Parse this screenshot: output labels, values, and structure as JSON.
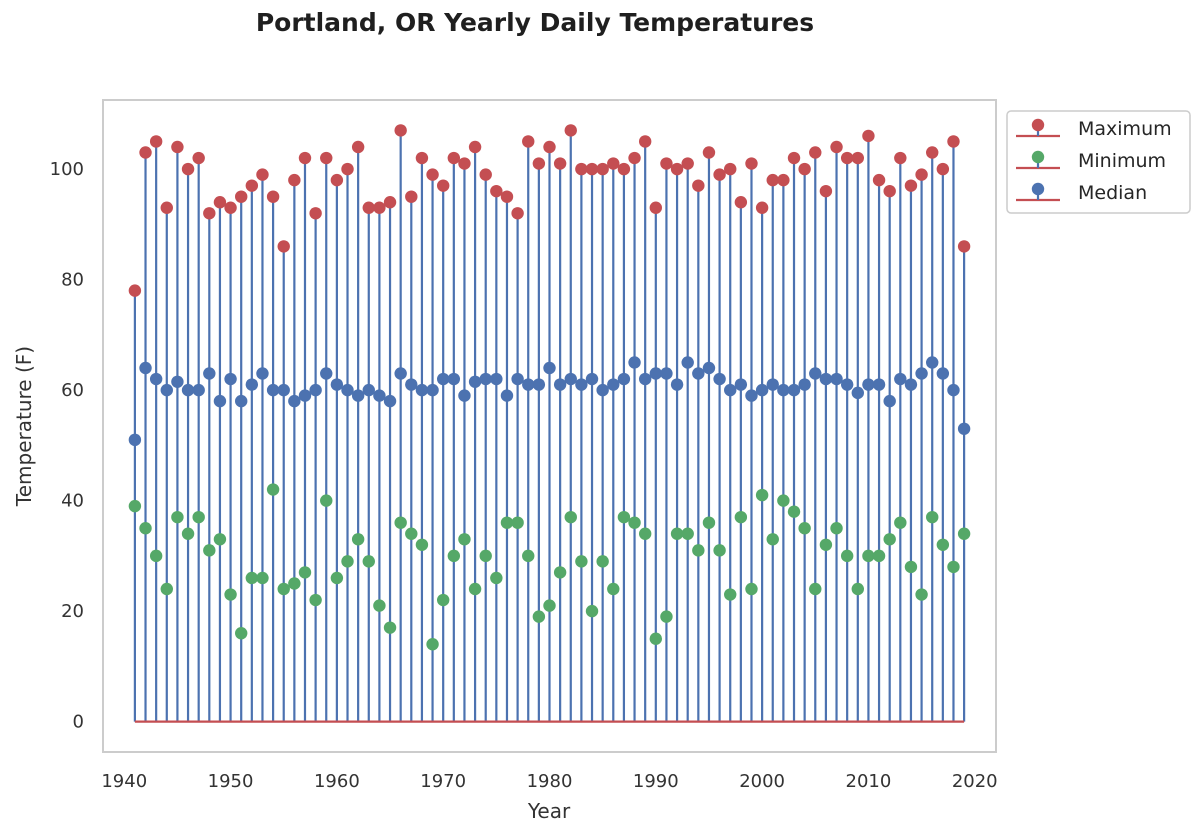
{
  "chart_data": {
    "type": "stem",
    "title": "Portland, OR Yearly Daily Temperatures",
    "xlabel": "Year",
    "ylabel": "Temperature (F)",
    "xlim": [
      1938,
      2022
    ],
    "ylim": [
      -5.5,
      112.5
    ],
    "xticks": [
      1940,
      1950,
      1960,
      1970,
      1980,
      1990,
      2000,
      2010,
      2020
    ],
    "yticks": [
      0,
      20,
      40,
      60,
      80,
      100
    ],
    "grid": false,
    "legend_position": "outside-top-right",
    "x": [
      1941,
      1942,
      1943,
      1944,
      1945,
      1946,
      1947,
      1948,
      1949,
      1950,
      1951,
      1952,
      1953,
      1954,
      1955,
      1956,
      1957,
      1958,
      1959,
      1960,
      1961,
      1962,
      1963,
      1964,
      1965,
      1966,
      1967,
      1968,
      1969,
      1970,
      1971,
      1972,
      1973,
      1974,
      1975,
      1976,
      1977,
      1978,
      1979,
      1980,
      1981,
      1982,
      1983,
      1984,
      1985,
      1986,
      1987,
      1988,
      1989,
      1990,
      1991,
      1992,
      1993,
      1994,
      1995,
      1996,
      1997,
      1998,
      1999,
      2000,
      2001,
      2002,
      2003,
      2004,
      2005,
      2006,
      2007,
      2008,
      2009,
      2010,
      2011,
      2012,
      2013,
      2014,
      2015,
      2016,
      2017,
      2018,
      2019
    ],
    "series": [
      {
        "name": "Maximum",
        "color": "#c44e52",
        "values": [
          78,
          103,
          105,
          93,
          104,
          100,
          102,
          92,
          94,
          93,
          95,
          97,
          99,
          95,
          86,
          98,
          102,
          92,
          102,
          98,
          100,
          104,
          93,
          93,
          94,
          107,
          95,
          102,
          99,
          97,
          102,
          101,
          104,
          99,
          96,
          95,
          92,
          105,
          101,
          104,
          101,
          107,
          100,
          100,
          100,
          101,
          100,
          102,
          105,
          93,
          101,
          100,
          101,
          97,
          103,
          99,
          100,
          94,
          101,
          93,
          98,
          98,
          102,
          100,
          103,
          96,
          104,
          102,
          102,
          106,
          98,
          96,
          102,
          97,
          99,
          103,
          100,
          105,
          86
        ]
      },
      {
        "name": "Minimum",
        "color": "#55a868",
        "values": [
          39,
          35,
          30,
          24,
          37,
          34,
          37,
          31,
          33,
          23,
          16,
          26,
          26,
          42,
          24,
          25,
          27,
          22,
          40,
          26,
          29,
          33,
          29,
          21,
          17,
          36,
          34,
          32,
          14,
          22,
          30,
          33,
          24,
          30,
          26,
          36,
          36,
          30,
          19,
          21,
          27,
          37,
          29,
          20,
          29,
          24,
          37,
          36,
          34,
          15,
          19,
          34,
          34,
          31,
          36,
          31,
          23,
          37,
          24,
          41,
          33,
          40,
          38,
          35,
          24,
          32,
          35,
          30,
          24,
          30,
          30,
          33,
          36,
          28,
          23,
          37,
          32,
          28,
          34
        ]
      },
      {
        "name": "Median",
        "color": "#4c72b0",
        "values": [
          51,
          64,
          62,
          60,
          61.5,
          60,
          60,
          63,
          58,
          62,
          58,
          61,
          63,
          60,
          60,
          58,
          59,
          60,
          63,
          61,
          60,
          59,
          60,
          59,
          58,
          63,
          61,
          60,
          60,
          62,
          62,
          59,
          61.5,
          62,
          62,
          59,
          62,
          61,
          61,
          64,
          61,
          62,
          61,
          62,
          60,
          61,
          62,
          65,
          62,
          63,
          63,
          61,
          65,
          63,
          64,
          62,
          60,
          61,
          59,
          60,
          61,
          60,
          60,
          61,
          63,
          62,
          62,
          61,
          59.5,
          61,
          61,
          58,
          62,
          61,
          63,
          65,
          63,
          60,
          53
        ]
      }
    ]
  }
}
